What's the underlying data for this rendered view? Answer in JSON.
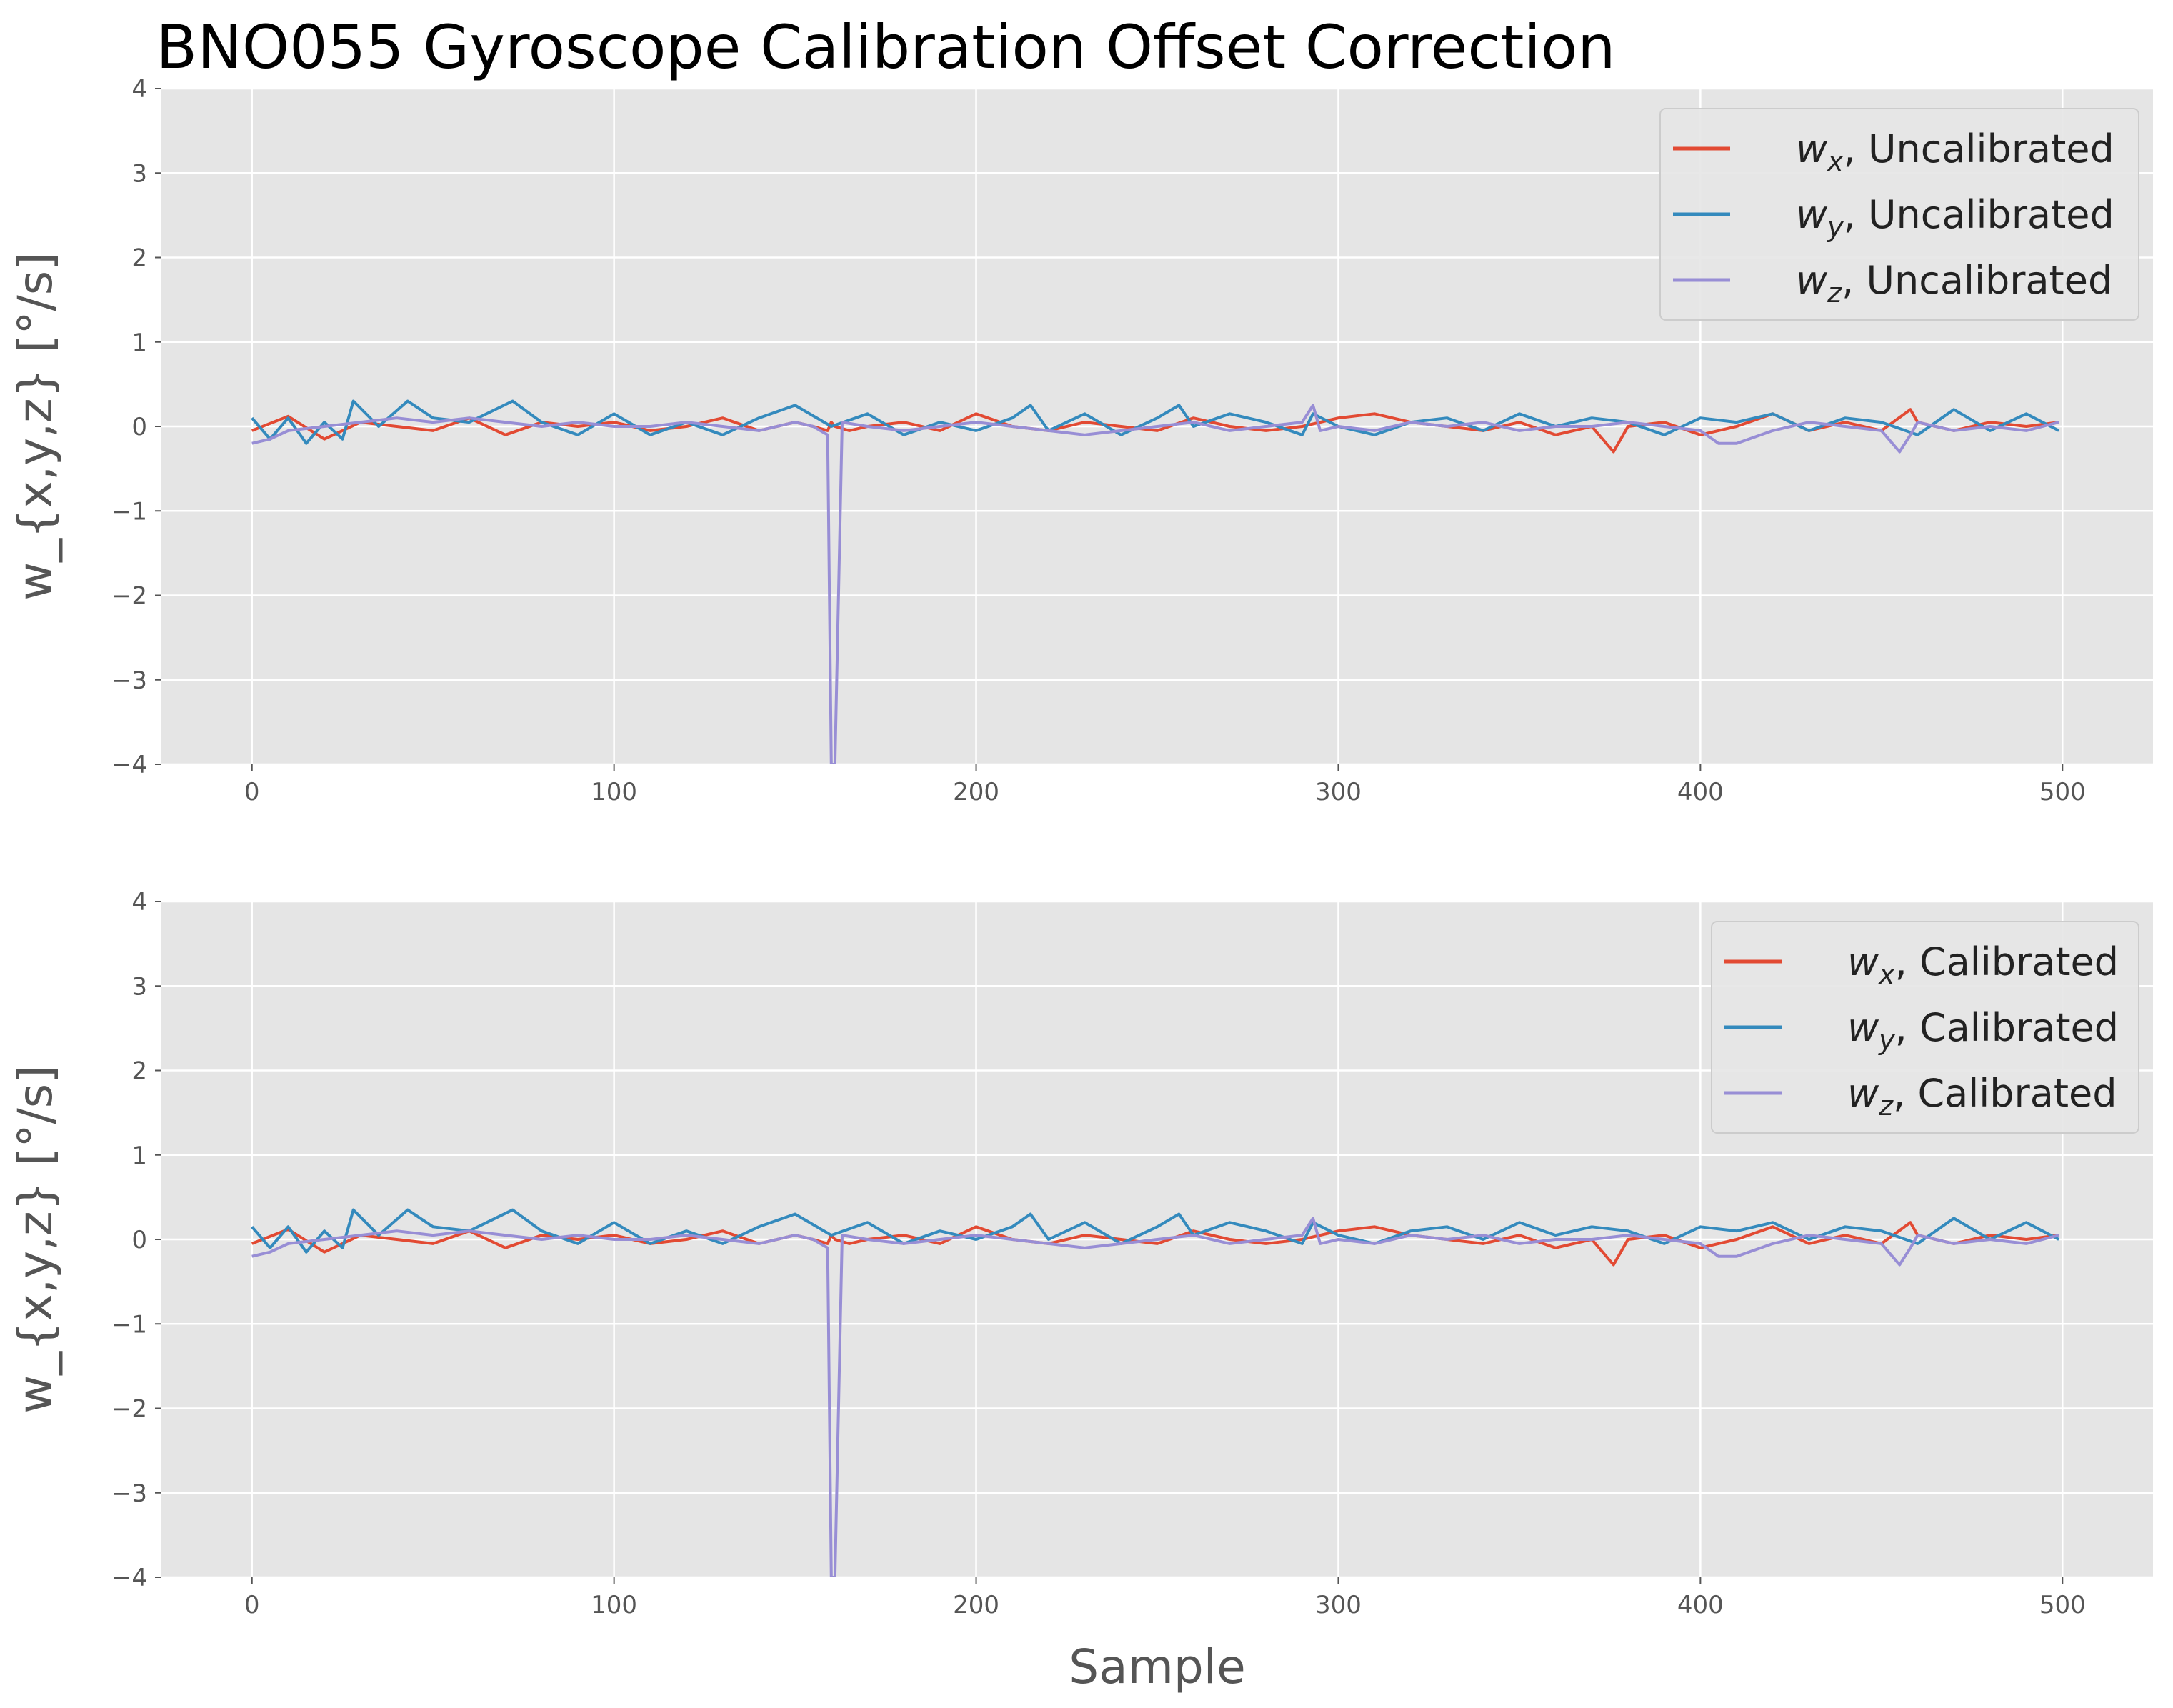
{
  "figure": {
    "title": "BNO055 Gyroscope Calibration Offset Correction"
  },
  "chart_data": [
    {
      "type": "line",
      "title": "BNO055 Gyroscope Calibration Offset Correction",
      "xlabel": "",
      "ylabel": "w_{x,y,z} [°/s]",
      "xlim": [
        -25,
        525
      ],
      "ylim": [
        -4,
        4
      ],
      "xticks": [
        0,
        100,
        200,
        300,
        400,
        500
      ],
      "yticks": [
        -4,
        -3,
        -2,
        -1,
        0,
        1,
        2,
        3,
        4
      ],
      "grid": true,
      "legend_position": "top-right",
      "series": [
        {
          "name": "w_x, Uncalibrated",
          "legend_var": "w",
          "legend_sub": "x",
          "legend_rest": ", Uncalibrated",
          "color": "#E24A33",
          "x": [
            0,
            10,
            20,
            30,
            40,
            50,
            60,
            70,
            80,
            90,
            100,
            110,
            120,
            130,
            140,
            150,
            155,
            159,
            160,
            161,
            165,
            170,
            180,
            190,
            200,
            210,
            220,
            230,
            240,
            250,
            260,
            270,
            280,
            290,
            300,
            310,
            320,
            330,
            340,
            350,
            360,
            370,
            376,
            380,
            390,
            400,
            410,
            420,
            430,
            440,
            450,
            458,
            460,
            470,
            480,
            490,
            499
          ],
          "y": [
            -0.05,
            0.12,
            -0.15,
            0.05,
            0.0,
            -0.05,
            0.1,
            -0.1,
            0.05,
            0.0,
            0.05,
            -0.05,
            0.0,
            0.1,
            -0.05,
            0.05,
            0.0,
            -0.05,
            0.05,
            0.0,
            -0.05,
            0.0,
            0.05,
            -0.05,
            0.15,
            0.0,
            -0.05,
            0.05,
            0.0,
            -0.05,
            0.1,
            0.0,
            -0.05,
            0.0,
            0.1,
            0.15,
            0.05,
            0.0,
            -0.05,
            0.05,
            -0.1,
            0.0,
            -0.3,
            0.0,
            0.05,
            -0.1,
            0.0,
            0.15,
            -0.05,
            0.05,
            -0.05,
            0.2,
            0.05,
            -0.05,
            0.05,
            0.0,
            0.05
          ]
        },
        {
          "name": "w_y, Uncalibrated",
          "legend_var": "w",
          "legend_sub": "y",
          "legend_rest": ", Uncalibrated",
          "color": "#348ABD",
          "x": [
            0,
            5,
            10,
            15,
            20,
            25,
            28,
            35,
            43,
            50,
            60,
            72,
            80,
            90,
            100,
            110,
            120,
            130,
            140,
            150,
            160,
            170,
            180,
            190,
            200,
            210,
            215,
            220,
            230,
            240,
            250,
            256,
            260,
            270,
            280,
            290,
            293,
            300,
            310,
            320,
            330,
            340,
            350,
            360,
            370,
            380,
            390,
            400,
            410,
            420,
            430,
            440,
            450,
            460,
            470,
            480,
            490,
            499
          ],
          "y": [
            0.1,
            -0.15,
            0.1,
            -0.2,
            0.05,
            -0.15,
            0.3,
            0.0,
            0.3,
            0.1,
            0.05,
            0.3,
            0.05,
            -0.1,
            0.15,
            -0.1,
            0.05,
            -0.1,
            0.1,
            0.25,
            0.0,
            0.15,
            -0.1,
            0.05,
            -0.05,
            0.1,
            0.25,
            -0.05,
            0.15,
            -0.1,
            0.1,
            0.25,
            0.0,
            0.15,
            0.05,
            -0.1,
            0.15,
            0.0,
            -0.1,
            0.05,
            0.1,
            -0.05,
            0.15,
            0.0,
            0.1,
            0.05,
            -0.1,
            0.1,
            0.05,
            0.15,
            -0.05,
            0.1,
            0.05,
            -0.1,
            0.2,
            -0.05,
            0.15,
            -0.05
          ]
        },
        {
          "name": "w_z, Uncalibrated",
          "legend_var": "w",
          "legend_sub": "z",
          "legend_rest": ", Uncalibrated",
          "color": "#988ED5",
          "x": [
            0,
            5,
            10,
            20,
            30,
            40,
            50,
            60,
            70,
            80,
            90,
            100,
            110,
            120,
            130,
            140,
            150,
            155,
            159,
            160,
            161,
            163,
            170,
            180,
            190,
            200,
            210,
            220,
            230,
            240,
            250,
            260,
            270,
            280,
            290,
            293,
            295,
            300,
            310,
            320,
            330,
            340,
            350,
            360,
            370,
            380,
            390,
            400,
            405,
            410,
            420,
            430,
            440,
            450,
            455,
            458,
            460,
            470,
            480,
            490,
            499
          ],
          "y": [
            -0.2,
            -0.15,
            -0.05,
            0.0,
            0.05,
            0.1,
            0.05,
            0.1,
            0.05,
            0.0,
            0.05,
            0.0,
            0.0,
            0.05,
            0.0,
            -0.05,
            0.05,
            0.0,
            -0.1,
            -4.0,
            -4.0,
            0.05,
            0.0,
            -0.05,
            0.0,
            0.05,
            0.0,
            -0.05,
            -0.1,
            -0.05,
            0.0,
            0.05,
            -0.05,
            0.0,
            0.05,
            0.25,
            -0.05,
            0.0,
            -0.05,
            0.05,
            0.0,
            0.05,
            -0.05,
            0.0,
            0.0,
            0.05,
            0.0,
            -0.05,
            -0.2,
            -0.2,
            -0.05,
            0.05,
            0.0,
            -0.05,
            -0.3,
            -0.1,
            0.05,
            -0.05,
            0.0,
            -0.05,
            0.05
          ]
        }
      ]
    },
    {
      "type": "line",
      "xlabel": "Sample",
      "ylabel": "w_{x,y,z} [°/s]",
      "xlim": [
        -25,
        525
      ],
      "ylim": [
        -4,
        4
      ],
      "xticks": [
        0,
        100,
        200,
        300,
        400,
        500
      ],
      "yticks": [
        -4,
        -3,
        -2,
        -1,
        0,
        1,
        2,
        3,
        4
      ],
      "grid": true,
      "legend_position": "top-right",
      "series": [
        {
          "name": "w_x, Calibrated",
          "legend_var": "w",
          "legend_sub": "x",
          "legend_rest": ", Calibrated",
          "color": "#E24A33",
          "x": [
            0,
            10,
            20,
            30,
            40,
            50,
            60,
            70,
            80,
            90,
            100,
            110,
            120,
            130,
            140,
            150,
            155,
            159,
            160,
            161,
            165,
            170,
            180,
            190,
            200,
            210,
            220,
            230,
            240,
            250,
            260,
            270,
            280,
            290,
            300,
            310,
            320,
            330,
            340,
            350,
            360,
            370,
            376,
            380,
            390,
            400,
            410,
            420,
            430,
            440,
            450,
            458,
            460,
            470,
            480,
            490,
            499
          ],
          "y": [
            -0.05,
            0.12,
            -0.15,
            0.05,
            0.0,
            -0.05,
            0.1,
            -0.1,
            0.05,
            0.0,
            0.05,
            -0.05,
            0.0,
            0.1,
            -0.05,
            0.05,
            0.0,
            -0.05,
            0.05,
            0.0,
            -0.05,
            0.0,
            0.05,
            -0.05,
            0.15,
            0.0,
            -0.05,
            0.05,
            0.0,
            -0.05,
            0.1,
            0.0,
            -0.05,
            0.0,
            0.1,
            0.15,
            0.05,
            0.0,
            -0.05,
            0.05,
            -0.1,
            0.0,
            -0.3,
            0.0,
            0.05,
            -0.1,
            0.0,
            0.15,
            -0.05,
            0.05,
            -0.05,
            0.2,
            0.05,
            -0.05,
            0.05,
            0.0,
            0.05
          ]
        },
        {
          "name": "w_y, Calibrated",
          "legend_var": "w",
          "legend_sub": "y",
          "legend_rest": ", Calibrated",
          "color": "#348ABD",
          "x": [
            0,
            5,
            10,
            15,
            20,
            25,
            28,
            35,
            43,
            50,
            60,
            72,
            80,
            90,
            100,
            110,
            120,
            130,
            140,
            150,
            160,
            170,
            180,
            190,
            200,
            210,
            215,
            220,
            230,
            240,
            250,
            256,
            260,
            270,
            280,
            290,
            293,
            300,
            310,
            320,
            330,
            340,
            350,
            360,
            370,
            380,
            390,
            400,
            410,
            420,
            430,
            440,
            450,
            460,
            470,
            480,
            490,
            499
          ],
          "y": [
            0.15,
            -0.1,
            0.15,
            -0.15,
            0.1,
            -0.1,
            0.35,
            0.05,
            0.35,
            0.15,
            0.1,
            0.35,
            0.1,
            -0.05,
            0.2,
            -0.05,
            0.1,
            -0.05,
            0.15,
            0.3,
            0.05,
            0.2,
            -0.05,
            0.1,
            0.0,
            0.15,
            0.3,
            0.0,
            0.2,
            -0.05,
            0.15,
            0.3,
            0.05,
            0.2,
            0.1,
            -0.05,
            0.2,
            0.05,
            -0.05,
            0.1,
            0.15,
            0.0,
            0.2,
            0.05,
            0.15,
            0.1,
            -0.05,
            0.15,
            0.1,
            0.2,
            0.0,
            0.15,
            0.1,
            -0.05,
            0.25,
            0.0,
            0.2,
            0.0
          ]
        },
        {
          "name": "w_z, Calibrated",
          "legend_var": "w",
          "legend_sub": "z",
          "legend_rest": ", Calibrated",
          "color": "#988ED5",
          "x": [
            0,
            5,
            10,
            20,
            30,
            40,
            50,
            60,
            70,
            80,
            90,
            100,
            110,
            120,
            130,
            140,
            150,
            155,
            159,
            160,
            161,
            163,
            170,
            180,
            190,
            200,
            210,
            220,
            230,
            240,
            250,
            260,
            270,
            280,
            290,
            293,
            295,
            300,
            310,
            320,
            330,
            340,
            350,
            360,
            370,
            380,
            390,
            400,
            405,
            410,
            420,
            430,
            440,
            450,
            455,
            458,
            460,
            470,
            480,
            490,
            499
          ],
          "y": [
            -0.2,
            -0.15,
            -0.05,
            0.0,
            0.05,
            0.1,
            0.05,
            0.1,
            0.05,
            0.0,
            0.05,
            0.0,
            0.0,
            0.05,
            0.0,
            -0.05,
            0.05,
            0.0,
            -0.1,
            -4.0,
            -4.0,
            0.05,
            0.0,
            -0.05,
            0.0,
            0.05,
            0.0,
            -0.05,
            -0.1,
            -0.05,
            0.0,
            0.05,
            -0.05,
            0.0,
            0.05,
            0.25,
            -0.05,
            0.0,
            -0.05,
            0.05,
            0.0,
            0.05,
            -0.05,
            0.0,
            0.0,
            0.05,
            0.0,
            -0.05,
            -0.2,
            -0.2,
            -0.05,
            0.05,
            0.0,
            -0.05,
            -0.3,
            -0.1,
            0.05,
            -0.05,
            0.0,
            -0.05,
            0.05
          ]
        }
      ]
    }
  ]
}
